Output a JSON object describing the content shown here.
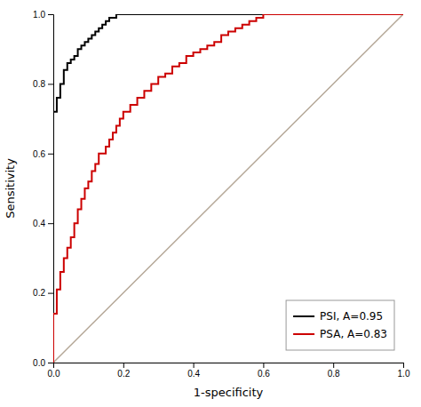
{
  "chart_data": {
    "type": "line",
    "xlabel": "1-specificity",
    "ylabel": "Sensitivity",
    "xlim": [
      0,
      1.0
    ],
    "ylim": [
      0,
      1.0
    ],
    "xticks": [
      {
        "value": 0,
        "label": "0.0"
      },
      0.2,
      0.4,
      0.6,
      0.8,
      {
        "value": 1.0,
        "label": "1.0"
      }
    ],
    "yticks": [
      {
        "value": 0,
        "label": "0.0"
      },
      0.2,
      0.4,
      0.6,
      0.8,
      {
        "value": 1.0,
        "label": "1.0"
      }
    ],
    "grid": false,
    "legend": "lower right",
    "series": [
      {
        "type": "line",
        "color": "#b5a898",
        "x": [
          0,
          1
        ],
        "values": [
          0,
          1
        ]
      },
      {
        "name": "PSI, A=0.95",
        "type": "step",
        "color": "#000000",
        "x": [
          0.0,
          0.0,
          0.0,
          0.0,
          0.0,
          0.01,
          0.01,
          0.02,
          0.02,
          0.03,
          0.03,
          0.04,
          0.04,
          0.05,
          0.05,
          0.06,
          0.06,
          0.07,
          0.07,
          0.08,
          0.08,
          0.09,
          0.09,
          0.1,
          0.1,
          0.11,
          0.11,
          0.12,
          0.12,
          0.13,
          0.13,
          0.14,
          0.14,
          0.15,
          0.15,
          0.16,
          0.16,
          0.17,
          0.18,
          0.19,
          0.2,
          0.5,
          0.55,
          1.0
        ],
        "values": [
          0.0,
          0.07,
          0.54,
          0.62,
          0.72,
          0.72,
          0.76,
          0.76,
          0.8,
          0.8,
          0.84,
          0.84,
          0.86,
          0.86,
          0.87,
          0.87,
          0.88,
          0.88,
          0.9,
          0.9,
          0.91,
          0.91,
          0.92,
          0.92,
          0.93,
          0.93,
          0.94,
          0.94,
          0.95,
          0.95,
          0.96,
          0.96,
          0.97,
          0.97,
          0.98,
          0.98,
          0.99,
          0.99,
          1.0,
          1.0,
          1.0,
          1.0,
          1.0,
          1.0
        ]
      },
      {
        "name": "PSA, A=0.83",
        "type": "step",
        "color": "#cc0000",
        "x": [
          0.0,
          0.0,
          0.0,
          0.01,
          0.01,
          0.02,
          0.02,
          0.03,
          0.03,
          0.04,
          0.04,
          0.05,
          0.05,
          0.06,
          0.06,
          0.07,
          0.07,
          0.08,
          0.08,
          0.09,
          0.09,
          0.1,
          0.1,
          0.11,
          0.11,
          0.12,
          0.12,
          0.13,
          0.13,
          0.14,
          0.15,
          0.16,
          0.17,
          0.18,
          0.19,
          0.2,
          0.22,
          0.24,
          0.26,
          0.28,
          0.3,
          0.32,
          0.34,
          0.36,
          0.38,
          0.4,
          0.42,
          0.44,
          0.46,
          0.48,
          0.5,
          0.52,
          0.54,
          0.56,
          0.58,
          0.6,
          1.0
        ],
        "values": [
          0.0,
          0.07,
          0.14,
          0.14,
          0.21,
          0.21,
          0.26,
          0.26,
          0.3,
          0.3,
          0.33,
          0.33,
          0.36,
          0.36,
          0.4,
          0.4,
          0.44,
          0.44,
          0.47,
          0.47,
          0.5,
          0.5,
          0.52,
          0.52,
          0.55,
          0.55,
          0.57,
          0.57,
          0.6,
          0.6,
          0.62,
          0.64,
          0.66,
          0.68,
          0.7,
          0.72,
          0.74,
          0.76,
          0.78,
          0.8,
          0.82,
          0.83,
          0.85,
          0.86,
          0.88,
          0.89,
          0.9,
          0.91,
          0.92,
          0.94,
          0.95,
          0.96,
          0.97,
          0.98,
          0.99,
          1.0,
          1.0
        ]
      }
    ]
  }
}
